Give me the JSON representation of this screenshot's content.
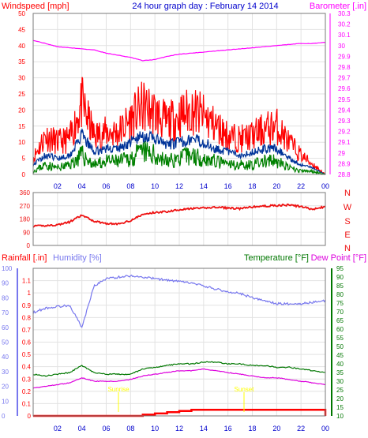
{
  "title": "24 hour graph day : February 14 2014",
  "colors": {
    "background": "#ffffff",
    "grid": "#e2e2e2",
    "axis": "#7a7a7a",
    "wind": "#ff0000",
    "wind_avg": "#003399",
    "wind_low": "#008000",
    "barometer": "#ff00ff",
    "direction": "#ee1111",
    "rain": "#ff0000",
    "humidity": "#7777ee",
    "temperature": "#007700",
    "dewpoint": "#dd00dd",
    "sun_marker": "#ffff00",
    "time_label": "#0000cc"
  },
  "time_ticks": [
    "02",
    "04",
    "06",
    "08",
    "10",
    "12",
    "14",
    "16",
    "18",
    "20",
    "22",
    "00"
  ],
  "sun_labels": {
    "sunrise": "Sunrise",
    "sunset": "Sunset"
  },
  "chart_data": [
    {
      "type": "line",
      "title": "24 hour graph day : February 14 2014",
      "ylabel": "Windspeed [mph]",
      "ylabel_right": "Barometer [.in]",
      "ylim": [
        0,
        50
      ],
      "yticks": [
        "0",
        "5",
        "10",
        "15",
        "20",
        "25",
        "30",
        "35",
        "40",
        "45",
        "50"
      ],
      "ylim_right": [
        28.8,
        30.3
      ],
      "yticks_right": [
        "28.8",
        "28.9",
        "29",
        "29.1",
        "29.2",
        "29.3",
        "29.4",
        "29.5",
        "29.6",
        "29.7",
        "29.8",
        "29.9",
        "30",
        "30.1",
        "30.2",
        "30.3"
      ],
      "x": [
        0,
        1,
        2,
        3,
        4,
        5,
        6,
        7,
        8,
        9,
        10,
        11,
        12,
        13,
        14,
        15,
        16,
        17,
        18,
        19,
        20,
        21,
        22,
        23,
        24
      ],
      "series": [
        {
          "name": "Windspeed",
          "color": "#ff0000",
          "values": [
            5,
            12,
            10,
            11,
            22,
            12,
            13,
            13,
            17,
            21,
            19,
            16,
            18,
            20,
            18,
            15,
            12,
            11,
            12,
            14,
            15,
            10,
            6,
            3,
            0
          ]
        },
        {
          "color": "#003399",
          "values": [
            3,
            6,
            5,
            6,
            12,
            7,
            8,
            8,
            10,
            12,
            11,
            9,
            10,
            11,
            10,
            8,
            7,
            6,
            7,
            8,
            8,
            5,
            3,
            2,
            0
          ]
        },
        {
          "color": "#008000",
          "values": [
            1,
            3,
            2,
            3,
            6,
            3,
            4,
            4,
            5,
            7,
            6,
            4,
            5,
            6,
            5,
            4,
            3,
            3,
            3,
            4,
            4,
            2,
            1,
            1,
            0
          ]
        },
        {
          "name": "Barometer",
          "axis": "right",
          "color": "#ff00ff",
          "values": [
            30.05,
            30.02,
            29.99,
            29.98,
            29.97,
            29.96,
            29.93,
            29.91,
            29.89,
            29.86,
            29.87,
            29.9,
            29.92,
            29.93,
            29.94,
            29.95,
            29.96,
            29.97,
            29.98,
            29.99,
            30.0,
            30.01,
            30.02,
            30.02,
            30.03
          ]
        }
      ]
    },
    {
      "type": "line",
      "ylim": [
        0,
        360
      ],
      "yticks": [
        "0",
        "90",
        "180",
        "270",
        "360"
      ],
      "ylabels_right": [
        "N",
        "W",
        "S",
        "E",
        "N"
      ],
      "x": [
        0,
        1,
        2,
        3,
        4,
        5,
        6,
        7,
        8,
        9,
        10,
        11,
        12,
        13,
        14,
        15,
        16,
        17,
        18,
        19,
        20,
        21,
        22,
        23,
        24
      ],
      "series": [
        {
          "color": "#ee1111",
          "values": [
            130,
            135,
            140,
            160,
            205,
            165,
            150,
            145,
            170,
            210,
            225,
            230,
            245,
            250,
            255,
            260,
            255,
            250,
            262,
            268,
            272,
            275,
            265,
            245,
            265
          ]
        }
      ]
    },
    {
      "type": "line",
      "ylabel": "Rainfall [.in]",
      "ylabel2": "Humidity [%]",
      "ylabel_right": "Temperature [°F]",
      "ylabel_right2": "Dew Point [°F]",
      "ylim_rain": [
        0,
        1.2
      ],
      "yticks_rain": [
        "0",
        "0.1",
        "0.2",
        "0.3",
        "0.4",
        "0.5",
        "0.6",
        "0.7",
        "0.8",
        "0.9",
        "1",
        "1.1"
      ],
      "ylim_humidity": [
        0,
        100
      ],
      "yticks_humidity": [
        "0",
        "10",
        "20",
        "30",
        "40",
        "50",
        "60",
        "70",
        "80",
        "90",
        "100"
      ],
      "ylim_temp": [
        10,
        95
      ],
      "yticks_temp": [
        "10",
        "15",
        "20",
        "25",
        "30",
        "35",
        "40",
        "45",
        "50",
        "55",
        "60",
        "65",
        "70",
        "75",
        "80",
        "85",
        "90",
        "95"
      ],
      "x": [
        0,
        1,
        2,
        3,
        4,
        5,
        6,
        7,
        8,
        9,
        10,
        11,
        12,
        13,
        14,
        15,
        16,
        17,
        18,
        19,
        20,
        21,
        22,
        23,
        24
      ],
      "series": [
        {
          "name": "Rainfall",
          "axis": "rain",
          "color": "#ff0000",
          "values": [
            0,
            0,
            0,
            0,
            0,
            0,
            0,
            0,
            0,
            0.01,
            0.02,
            0.03,
            0.04,
            0.05,
            0.05,
            0.05,
            0.05,
            0.05,
            0.05,
            0.05,
            0.05,
            0.05,
            0.05,
            0.05,
            0
          ]
        },
        {
          "name": "Humidity",
          "axis": "humidity",
          "color": "#7777ee",
          "values": [
            70,
            73,
            74,
            75,
            60,
            88,
            93,
            94,
            95,
            94,
            93,
            92,
            91,
            90,
            88,
            86,
            84,
            83,
            80,
            78,
            76,
            76,
            76,
            77,
            78
          ]
        },
        {
          "name": "Temperature",
          "axis": "temp",
          "color": "#007700",
          "values": [
            34,
            33,
            34,
            35,
            39,
            35,
            34,
            34,
            34,
            37,
            38,
            39,
            40,
            40,
            41,
            41,
            40,
            40,
            39,
            39,
            38,
            38,
            37,
            36,
            35
          ]
        },
        {
          "name": "Dew Point",
          "axis": "temp",
          "color": "#dd00dd",
          "values": [
            26,
            27,
            28,
            29,
            32,
            30,
            30,
            30,
            31,
            33,
            34,
            35,
            36,
            36,
            37,
            36,
            35,
            34,
            33,
            32,
            32,
            31,
            30,
            29,
            28
          ]
        }
      ]
    }
  ]
}
